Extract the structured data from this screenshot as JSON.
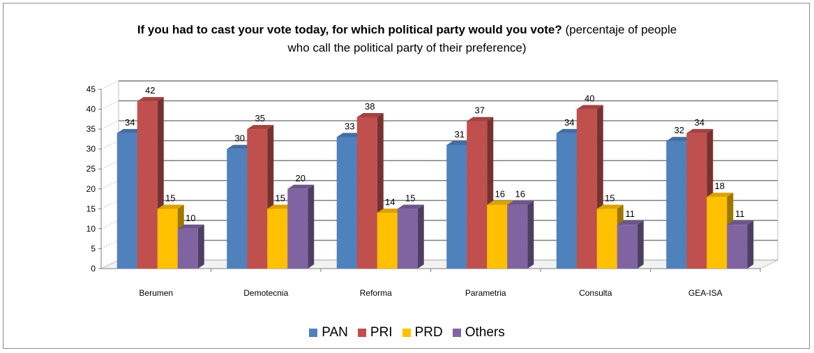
{
  "chart_data": {
    "type": "bar",
    "title_bold": "If you had to cast your vote today, for which political party would you vote?",
    "title_rest_1": " (percentaje of people",
    "title_line_2": "who call the political party of their preference)",
    "categories": [
      "Berumen",
      "Demotecnia",
      "Reforma",
      "Parametria",
      "Consulta",
      "GEA-ISA"
    ],
    "series": [
      {
        "name": "PAN",
        "color": "#4f81bd",
        "values": [
          34,
          30,
          33,
          31,
          34,
          32
        ]
      },
      {
        "name": "PRI",
        "color": "#c0504d",
        "values": [
          42,
          35,
          38,
          37,
          40,
          34
        ]
      },
      {
        "name": "PRD",
        "color": "#ffc000",
        "values": [
          15,
          15,
          14,
          16,
          15,
          18
        ]
      },
      {
        "name": "Others",
        "color": "#8064a2",
        "values": [
          10,
          20,
          15,
          16,
          11,
          11
        ]
      }
    ],
    "ylim": [
      0,
      45
    ],
    "yticks": [
      0,
      5,
      10,
      15,
      20,
      25,
      30,
      35,
      40,
      45
    ],
    "grid": true,
    "legend_position": "bottom"
  }
}
